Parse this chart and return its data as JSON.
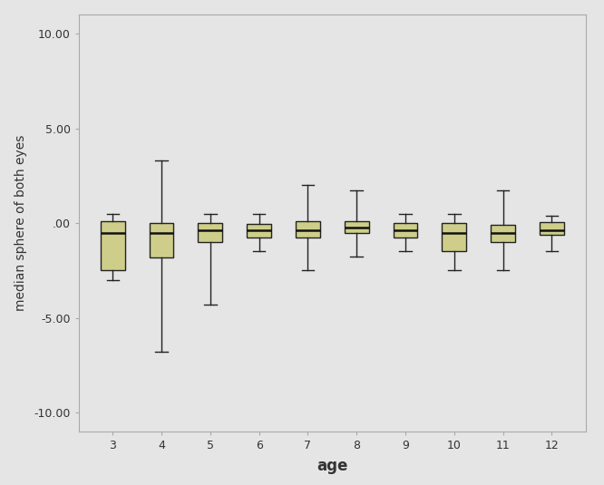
{
  "ages": [
    3,
    4,
    5,
    6,
    7,
    8,
    9,
    10,
    11,
    12
  ],
  "box_data": {
    "3": {
      "whislo": -3.0,
      "q1": -2.5,
      "med": -0.5,
      "q3": 0.1,
      "whishi": 0.5
    },
    "4": {
      "whislo": -6.8,
      "q1": -1.8,
      "med": -0.5,
      "q3": 0.0,
      "whishi": 3.3
    },
    "5": {
      "whislo": -4.3,
      "q1": -1.0,
      "med": -0.38,
      "q3": 0.0,
      "whishi": 0.5
    },
    "6": {
      "whislo": -1.5,
      "q1": -0.75,
      "med": -0.38,
      "q3": -0.05,
      "whishi": 0.5
    },
    "7": {
      "whislo": -2.5,
      "q1": -0.75,
      "med": -0.38,
      "q3": 0.1,
      "whishi": 2.0
    },
    "8": {
      "whislo": -1.75,
      "q1": -0.5,
      "med": -0.25,
      "q3": 0.1,
      "whishi": 1.75
    },
    "9": {
      "whislo": -1.5,
      "q1": -0.75,
      "med": -0.38,
      "q3": 0.0,
      "whishi": 0.5
    },
    "10": {
      "whislo": -2.5,
      "q1": -1.5,
      "med": -0.5,
      "q3": 0.0,
      "whishi": 0.5
    },
    "11": {
      "whislo": -2.5,
      "q1": -1.0,
      "med": -0.5,
      "q3": -0.1,
      "whishi": 1.75
    },
    "12": {
      "whislo": -1.5,
      "q1": -0.63,
      "med": -0.38,
      "q3": 0.05,
      "whishi": 0.38
    }
  },
  "ylim": [
    -11.0,
    11.0
  ],
  "yticks": [
    -10.0,
    -5.0,
    0.0,
    5.0,
    10.0
  ],
  "ytick_labels": [
    "-10.00",
    "-5.00",
    ".00",
    "5.00",
    "10.00"
  ],
  "xlabel": "age",
  "ylabel": "median sphere of both eyes",
  "box_color": "#cece8a",
  "box_edge_color": "#222222",
  "median_color": "#111111",
  "whisker_color": "#222222",
  "cap_color": "#222222",
  "bg_color": "#e5e5e5",
  "plot_bg_color": "#e5e5e5",
  "box_width": 0.5,
  "linewidth": 1.0,
  "median_linewidth": 1.8,
  "xlabel_fontsize": 12,
  "ylabel_fontsize": 10,
  "tick_fontsize": 9,
  "figsize": [
    6.66,
    5.35
  ],
  "dpi": 100
}
